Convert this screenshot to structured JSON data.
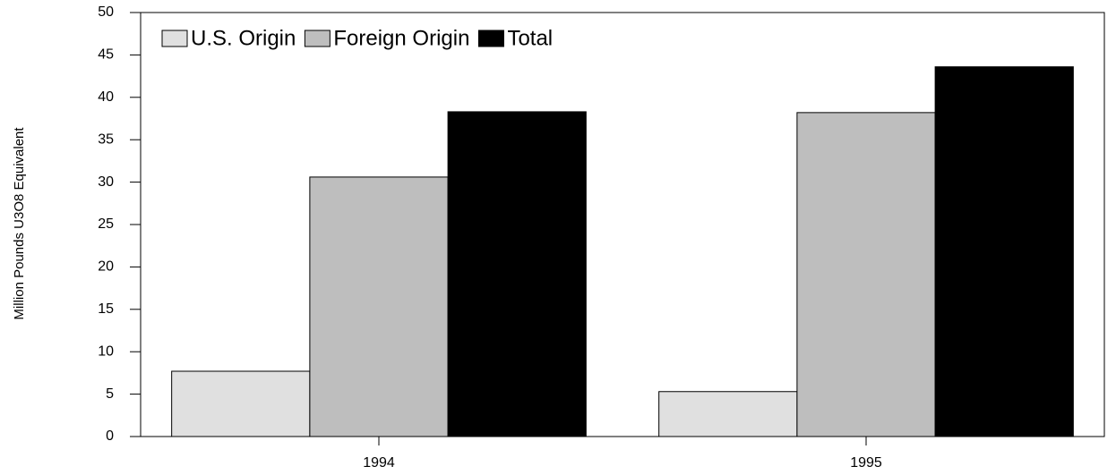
{
  "chart_data": {
    "type": "bar",
    "y_label": "Million Pounds U3O8 Equivalent",
    "categories": [
      "1994",
      "1995"
    ],
    "series": [
      {
        "name": "U.S. Origin",
        "color": "#e0e0e0",
        "values": [
          7.7,
          5.3
        ]
      },
      {
        "name": "Foreign Origin",
        "color": "#bebebe",
        "values": [
          30.6,
          38.2
        ]
      },
      {
        "name": "Total",
        "color": "#000000",
        "values": [
          38.3,
          43.6
        ]
      }
    ],
    "ylim": [
      0,
      50
    ],
    "yticks": [
      0,
      5,
      10,
      15,
      20,
      25,
      30,
      35,
      40,
      45,
      50
    ],
    "legend": "top-left"
  }
}
